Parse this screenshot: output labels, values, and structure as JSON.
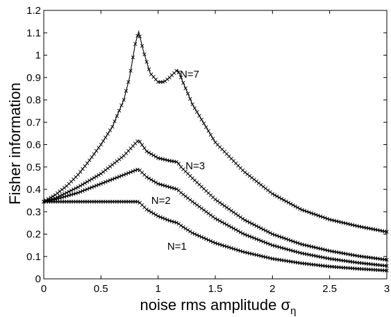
{
  "chart_data": {
    "type": "line",
    "title": "",
    "xlabel": "noise rms amplitude",
    "xlabel_symbol": "σ",
    "xlabel_subscript": "η",
    "ylabel": "Fisher information",
    "xlim": [
      0,
      3
    ],
    "ylim": [
      0,
      1.2
    ],
    "xticks": [
      "0",
      "0.5",
      "1",
      "1.5",
      "2",
      "2.5",
      "3"
    ],
    "yticks": [
      "0",
      "0.1",
      "0.2",
      "0.3",
      "0.4",
      "0.5",
      "0.6",
      "0.7",
      "0.8",
      "0.9",
      "1",
      "1.1",
      "1.2"
    ],
    "grid": false,
    "marker": "x",
    "series": [
      {
        "name": "N=1",
        "x": [
          0,
          0.1,
          0.2,
          0.3,
          0.4,
          0.5,
          0.6,
          0.7,
          0.8,
          0.83,
          0.9,
          1.0,
          1.1,
          1.17,
          1.2,
          1.3,
          1.5,
          1.75,
          2.0,
          2.25,
          2.5,
          2.75,
          3.0
        ],
        "y": [
          0.345,
          0.345,
          0.345,
          0.345,
          0.345,
          0.345,
          0.345,
          0.345,
          0.345,
          0.345,
          0.31,
          0.28,
          0.26,
          0.25,
          0.238,
          0.205,
          0.16,
          0.12,
          0.09,
          0.07,
          0.055,
          0.045,
          0.037
        ]
      },
      {
        "name": "N=2",
        "x": [
          0,
          0.1,
          0.2,
          0.3,
          0.4,
          0.5,
          0.6,
          0.7,
          0.8,
          0.83,
          0.9,
          1.0,
          1.1,
          1.17,
          1.2,
          1.3,
          1.5,
          1.75,
          2.0,
          2.25,
          2.5,
          2.75,
          3.0
        ],
        "y": [
          0.345,
          0.355,
          0.37,
          0.385,
          0.405,
          0.425,
          0.445,
          0.465,
          0.485,
          0.49,
          0.455,
          0.425,
          0.41,
          0.4,
          0.385,
          0.345,
          0.27,
          0.2,
          0.15,
          0.115,
          0.09,
          0.072,
          0.058
        ]
      },
      {
        "name": "N=3",
        "x": [
          0,
          0.1,
          0.2,
          0.3,
          0.4,
          0.5,
          0.6,
          0.7,
          0.8,
          0.83,
          0.9,
          1.0,
          1.1,
          1.17,
          1.2,
          1.3,
          1.5,
          1.75,
          2.0,
          2.25,
          2.5,
          2.75,
          3.0
        ],
        "y": [
          0.345,
          0.36,
          0.385,
          0.41,
          0.44,
          0.47,
          0.51,
          0.55,
          0.605,
          0.62,
          0.57,
          0.54,
          0.528,
          0.522,
          0.5,
          0.45,
          0.355,
          0.265,
          0.2,
          0.155,
          0.125,
          0.102,
          0.085
        ]
      },
      {
        "name": "N=7",
        "x": [
          0,
          0.1,
          0.2,
          0.3,
          0.4,
          0.5,
          0.6,
          0.7,
          0.75,
          0.8,
          0.83,
          0.87,
          0.93,
          1.0,
          1.05,
          1.1,
          1.17,
          1.2,
          1.3,
          1.5,
          1.75,
          2.0,
          2.25,
          2.5,
          2.75,
          3.0
        ],
        "y": [
          0.345,
          0.375,
          0.415,
          0.465,
          0.53,
          0.6,
          0.68,
          0.8,
          0.9,
          1.05,
          1.105,
          1.02,
          0.92,
          0.88,
          0.88,
          0.9,
          0.935,
          0.9,
          0.78,
          0.61,
          0.48,
          0.38,
          0.31,
          0.265,
          0.235,
          0.21
        ]
      }
    ],
    "annotations": [
      {
        "text": "N=7",
        "x": 1.19,
        "y": 0.9,
        "series": "N=7"
      },
      {
        "text": "N=3",
        "x": 1.24,
        "y": 0.49,
        "series": "N=3"
      },
      {
        "text": "N=2",
        "x": 0.94,
        "y": 0.335,
        "series": "N=2"
      },
      {
        "text": "N=1",
        "x": 1.08,
        "y": 0.13,
        "series": "N=1"
      }
    ]
  }
}
